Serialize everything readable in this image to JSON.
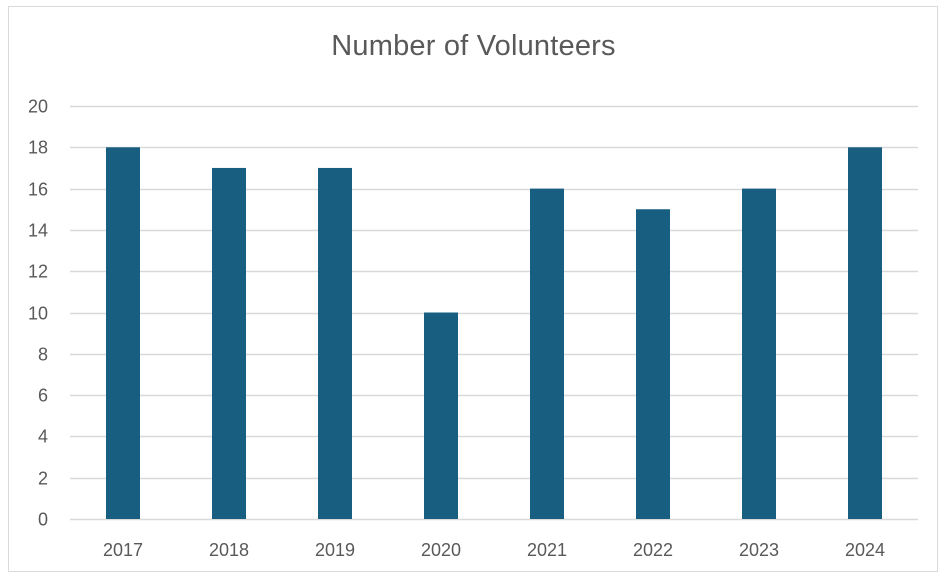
{
  "chart_data": {
    "type": "bar",
    "title": "Number of Volunteers",
    "xlabel": "",
    "ylabel": "",
    "categories": [
      "2017",
      "2018",
      "2019",
      "2020",
      "2021",
      "2022",
      "2023",
      "2024"
    ],
    "values": [
      18,
      17,
      17,
      10,
      16,
      15,
      16,
      18
    ],
    "ylim": [
      0,
      20
    ],
    "yticks": [
      0,
      2,
      4,
      6,
      8,
      10,
      12,
      14,
      16,
      18,
      20
    ],
    "grid": true,
    "legend": "none",
    "colors": {
      "bar": "#175E80",
      "grid": "#d9d9d9",
      "text": "#595959"
    }
  }
}
